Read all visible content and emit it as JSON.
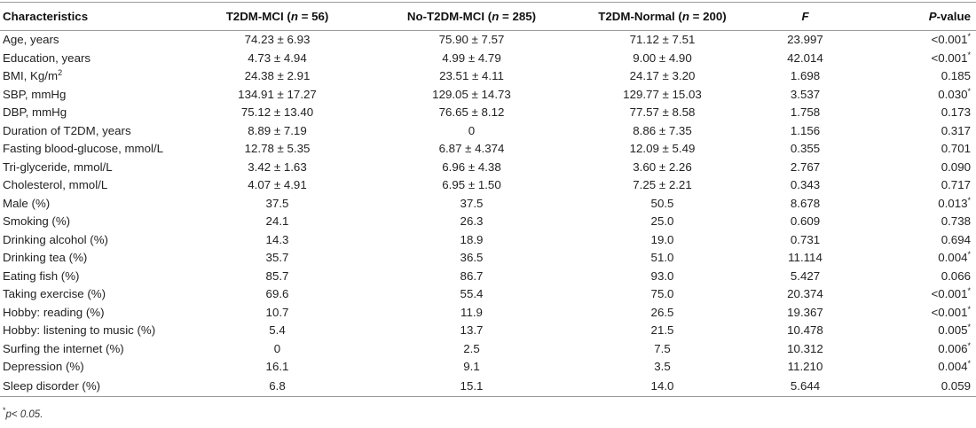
{
  "header": {
    "characteristics": "Characteristics",
    "group1": {
      "name": "T2DM-MCI (",
      "n_label": "n",
      "n_value": " = 56)"
    },
    "group2": {
      "name": "No-T2DM-MCI (",
      "n_label": "n",
      "n_value": " = 285)"
    },
    "group3": {
      "name": "T2DM-Normal (",
      "n_label": "n",
      "n_value": " = 200)"
    },
    "f": "F",
    "p_letter": "P",
    "p_rest": "-value"
  },
  "rows": [
    {
      "label": "Age, years",
      "v1": "74.23 ± 6.93",
      "v2": "75.90 ± 7.57",
      "v3": "71.12 ± 7.51",
      "f": "23.997",
      "p": "<0.001",
      "star": "*"
    },
    {
      "label": "Education, years",
      "v1": "4.73 ± 4.94",
      "v2": "4.99 ± 4.79",
      "v3": "9.00 ± 4.90",
      "f": "42.014",
      "p": "<0.001",
      "star": "*"
    },
    {
      "label": "BMI, Kg/m",
      "label_sup": "2",
      "v1": "24.38 ± 2.91",
      "v2": "23.51 ± 4.11",
      "v3": "24.17 ± 3.20",
      "f": "1.698",
      "p": "0.185",
      "star": ""
    },
    {
      "label": "SBP, mmHg",
      "v1": "134.91 ± 17.27",
      "v2": "129.05 ± 14.73",
      "v3": "129.77 ± 15.03",
      "f": "3.537",
      "p": "0.030",
      "star": "*"
    },
    {
      "label": "DBP, mmHg",
      "v1": "75.12 ± 13.40",
      "v2": "76.65 ± 8.12",
      "v3": "77.57 ± 8.58",
      "f": "1.758",
      "p": "0.173",
      "star": ""
    },
    {
      "label": "Duration of T2DM, years",
      "v1": "8.89 ± 7.19",
      "v2": "0",
      "v3": "8.86 ± 7.35",
      "f": "1.156",
      "p": "0.317",
      "star": ""
    },
    {
      "label": "Fasting blood-glucose, mmol/L",
      "v1": "12.78 ± 5.35",
      "v2": "6.87 ± 4.374",
      "v3": "12.09 ± 5.49",
      "f": "0.355",
      "p": "0.701",
      "star": ""
    },
    {
      "label": "Tri-glyceride, mmol/L",
      "v1": "3.42 ± 1.63",
      "v2": "6.96 ± 4.38",
      "v3": "3.60 ± 2.26",
      "f": "2.767",
      "p": "0.090",
      "star": ""
    },
    {
      "label": "Cholesterol, mmol/L",
      "v1": "4.07 ± 4.91",
      "v2": "6.95 ± 1.50",
      "v3": "7.25 ± 2.21",
      "f": "0.343",
      "p": "0.717",
      "star": ""
    },
    {
      "label": "Male (%)",
      "v1": "37.5",
      "v2": "37.5",
      "v3": "50.5",
      "f": "8.678",
      "p": "0.013",
      "star": "*"
    },
    {
      "label": "Smoking (%)",
      "v1": "24.1",
      "v2": "26.3",
      "v3": "25.0",
      "f": "0.609",
      "p": "0.738",
      "star": ""
    },
    {
      "label": "Drinking alcohol (%)",
      "v1": "14.3",
      "v2": "18.9",
      "v3": "19.0",
      "f": "0.731",
      "p": "0.694",
      "star": ""
    },
    {
      "label": "Drinking tea (%)",
      "v1": "35.7",
      "v2": "36.5",
      "v3": "51.0",
      "f": "11.114",
      "p": "0.004",
      "star": "*"
    },
    {
      "label": "Eating fish (%)",
      "v1": "85.7",
      "v2": "86.7",
      "v3": "93.0",
      "f": "5.427",
      "p": "0.066",
      "star": ""
    },
    {
      "label": "Taking exercise (%)",
      "v1": "69.6",
      "v2": "55.4",
      "v3": "75.0",
      "f": "20.374",
      "p": "<0.001",
      "star": "*"
    },
    {
      "label": "Hobby: reading (%)",
      "v1": "10.7",
      "v2": "11.9",
      "v3": "26.5",
      "f": "19.367",
      "p": "<0.001",
      "star": "*"
    },
    {
      "label": "Hobby: listening to music (%)",
      "v1": "5.4",
      "v2": "13.7",
      "v3": "21.5",
      "f": "10.478",
      "p": "0.005",
      "star": "*"
    },
    {
      "label": "Surfing the internet (%)",
      "v1": "0",
      "v2": "2.5",
      "v3": "7.5",
      "f": "10.312",
      "p": "0.006",
      "star": "*"
    },
    {
      "label": "Depression (%)",
      "v1": "16.1",
      "v2": "9.1",
      "v3": "3.5",
      "f": "11.210",
      "p": "0.004",
      "star": "*"
    },
    {
      "label": "Sleep disorder (%)",
      "v1": "6.8",
      "v2": "15.1",
      "v3": "14.0",
      "f": "5.644",
      "p": "0.059",
      "star": ""
    }
  ],
  "footnote": {
    "star": "*",
    "text": "p< 0.05."
  }
}
